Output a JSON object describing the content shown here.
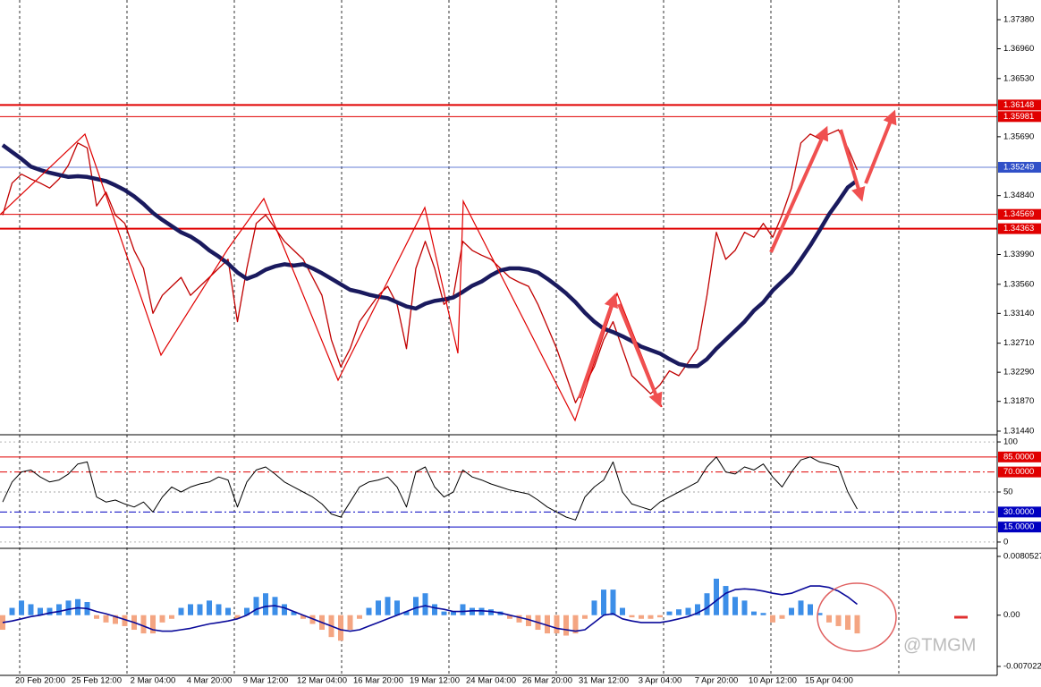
{
  "chart_data": [
    {
      "type": "line",
      "categories": [
        null,
        null,
        null,
        null,
        "20 Feb 20:00",
        null,
        null,
        null,
        null,
        null,
        "25 Feb 12:00",
        null,
        null,
        null,
        null,
        null,
        "2 Mar 04:00",
        null,
        null,
        null,
        null,
        null,
        "4 Mar 20:00",
        null,
        null,
        null,
        null,
        null,
        "9 Mar 12:00",
        null,
        null,
        null,
        null,
        null,
        "12 Mar 04:00",
        null,
        null,
        null,
        null,
        null,
        "16 Mar 20:00",
        null,
        null,
        null,
        null,
        null,
        "19 Mar 12:00",
        null,
        null,
        null,
        null,
        null,
        "24 Mar 04:00",
        null,
        null,
        null,
        null,
        null,
        "26 Mar 20:00",
        null,
        null,
        null,
        null,
        null,
        "31 Mar 12:00",
        null,
        null,
        null,
        null,
        null,
        "3 Apr 04:00",
        null,
        null,
        null,
        null,
        null,
        "7 Apr 20:00",
        null,
        null,
        null,
        null,
        null,
        "10 Apr 12:00",
        null,
        null,
        null,
        null,
        null,
        "15 Apr 04:00",
        null,
        null,
        null
      ],
      "series": [
        {
          "color": "#c00000",
          "values": [
            1.3456,
            1.3502,
            1.3515,
            1.3508,
            1.3502,
            1.3495,
            1.3508,
            1.3528,
            1.356,
            1.3553,
            1.3469,
            1.3489,
            1.3456,
            1.3444,
            1.3405,
            1.3379,
            1.3314,
            1.334,
            1.3353,
            1.3366,
            1.334,
            1.3353,
            1.3366,
            1.3379,
            1.3392,
            1.3302,
            1.3379,
            1.3444,
            1.3456,
            1.3437,
            1.3418,
            1.3405,
            1.3392,
            1.3366,
            1.334,
            1.3276,
            1.3237,
            1.3263,
            1.3302,
            1.3321,
            1.334,
            1.3353,
            1.3327,
            1.3263,
            1.3379,
            1.3418,
            1.3379,
            1.3327,
            1.334,
            1.3418,
            1.3405,
            1.3398,
            1.3392,
            1.3379,
            1.3366,
            1.3359,
            1.3353,
            1.3327,
            1.3295,
            1.3263,
            1.3224,
            1.3185,
            1.3211,
            1.3237,
            1.3276,
            1.3302,
            1.3263,
            1.3224,
            1.3211,
            1.3198,
            1.3211,
            1.3231,
            1.3224,
            1.3243,
            1.3263,
            1.334,
            1.3431,
            1.3392,
            1.3405,
            1.3431,
            1.3424,
            1.3444,
            1.3424,
            1.3456,
            1.3495,
            1.356,
            1.3573,
            1.3566,
            1.3573,
            1.3579,
            1.3553,
            1.3521
          ],
          "width": 1.3
        },
        {
          "color": "#1a1a5e",
          "values": [
            1.3557,
            1.3547,
            1.3537,
            1.3526,
            1.3521,
            1.3517,
            1.3514,
            1.3511,
            1.3512,
            1.3511,
            1.3508,
            1.3505,
            1.3499,
            1.3492,
            1.3483,
            1.3472,
            1.3459,
            1.3449,
            1.344,
            1.3431,
            1.3425,
            1.3416,
            1.3405,
            1.3396,
            1.3386,
            1.3373,
            1.3364,
            1.3369,
            1.3377,
            1.3382,
            1.3385,
            1.3383,
            1.3385,
            1.3379,
            1.3372,
            1.3364,
            1.3356,
            1.3348,
            1.3345,
            1.3341,
            1.3338,
            1.3336,
            1.333,
            1.3324,
            1.3321,
            1.3328,
            1.3332,
            1.3334,
            1.3337,
            1.3345,
            1.3354,
            1.336,
            1.3369,
            1.3376,
            1.3379,
            1.3379,
            1.3377,
            1.3373,
            1.3364,
            1.3354,
            1.3343,
            1.333,
            1.3315,
            1.3302,
            1.3292,
            1.3287,
            1.3281,
            1.3274,
            1.3266,
            1.3261,
            1.3256,
            1.3248,
            1.3241,
            1.3238,
            1.3238,
            1.3248,
            1.3263,
            1.3276,
            1.3289,
            1.3302,
            1.3318,
            1.333,
            1.3347,
            1.336,
            1.3373,
            1.3392,
            1.3412,
            1.3434,
            1.3457,
            1.3476,
            1.3496,
            1.3506
          ],
          "width": 4.5
        }
      ],
      "ylim": [
        1.31401,
        1.37664
      ],
      "yticks": [
        {
          "value": 1.3738,
          "label": "1.37380"
        },
        {
          "value": 1.3696,
          "label": "1.36960"
        },
        {
          "value": 1.3653,
          "label": "1.36530"
        },
        {
          "value": 1.3569,
          "label": "1.35690"
        },
        {
          "value": 1.3484,
          "label": "1.34840"
        },
        {
          "value": 1.3399,
          "label": "1.33990"
        },
        {
          "value": 1.3356,
          "label": "1.33560"
        },
        {
          "value": 1.3314,
          "label": "1.33140"
        },
        {
          "value": 1.3271,
          "label": "1.32710"
        },
        {
          "value": 1.3229,
          "label": "1.32290"
        },
        {
          "value": 1.3187,
          "label": "1.31870"
        },
        {
          "value": 1.3144,
          "label": "1.31440"
        }
      ],
      "levels": [
        {
          "value": 1.36148,
          "color": "#e00000",
          "width": 2
        },
        {
          "value": 1.35981,
          "color": "#e00000",
          "width": 1
        },
        {
          "value": 1.35249,
          "color": "#3050c8",
          "width": 0.8
        },
        {
          "value": 1.34569,
          "color": "#e00000",
          "width": 1
        },
        {
          "value": 1.34363,
          "color": "#e00000",
          "width": 2
        }
      ],
      "grid": false
    },
    {
      "type": "line",
      "series": [
        {
          "color": "#000000",
          "width": 1,
          "values": [
            40,
            60,
            70,
            72,
            65,
            60,
            62,
            68,
            78,
            80,
            45,
            40,
            42,
            38,
            35,
            40,
            30,
            45,
            55,
            50,
            55,
            58,
            60,
            65,
            62,
            35,
            60,
            72,
            75,
            68,
            60,
            55,
            50,
            45,
            38,
            28,
            25,
            40,
            55,
            60,
            62,
            65,
            55,
            35,
            70,
            75,
            55,
            45,
            50,
            72,
            65,
            62,
            58,
            55,
            52,
            50,
            48,
            42,
            35,
            30,
            25,
            22,
            45,
            55,
            62,
            80,
            50,
            38,
            35,
            32,
            40,
            45,
            50,
            55,
            60,
            75,
            85,
            70,
            68,
            75,
            72,
            78,
            65,
            55,
            70,
            82,
            85,
            80,
            78,
            75,
            50,
            33
          ]
        }
      ],
      "ylim": [
        -5.4,
        105.4
      ],
      "yticks": [
        0,
        50,
        100
      ],
      "levels": [
        {
          "value": 85,
          "label": "85.0000",
          "color": "#e00000",
          "width": 1,
          "dashed": false
        },
        {
          "value": 70,
          "label": "70.0000",
          "color": "#e00000",
          "width": 1,
          "dashed": true
        },
        {
          "value": 30,
          "label": "30.0000",
          "color": "#0000c0",
          "width": 1,
          "dashed": true
        },
        {
          "value": 15,
          "label": "15.0000",
          "color": "#0000c0",
          "width": 1,
          "dashed": false
        }
      ],
      "grid": true
    },
    {
      "type": "bar",
      "values": [
        -0.002,
        0.001,
        0.002,
        0.0015,
        0.001,
        0.001,
        0.0015,
        0.002,
        0.0022,
        0.0018,
        -0.0005,
        -0.001,
        -0.0012,
        -0.0015,
        -0.002,
        -0.0025,
        -0.0025,
        -0.001,
        -0.0005,
        0.001,
        0.0015,
        0.0015,
        0.002,
        0.0015,
        0.001,
        -0.0005,
        0.001,
        0.0025,
        0.003,
        0.0025,
        0.0015,
        0.0005,
        -0.0005,
        -0.0012,
        -0.002,
        -0.003,
        -0.0035,
        -0.002,
        -0.0005,
        0.001,
        0.002,
        0.0025,
        0.002,
        0.0005,
        0.0025,
        0.003,
        0.0015,
        0.0005,
        0.0005,
        0.0015,
        0.001,
        0.001,
        0.0008,
        0.0005,
        -0.0005,
        -0.001,
        -0.0015,
        -0.002,
        -0.0025,
        -0.0025,
        -0.0028,
        -0.0025,
        -0.0005,
        0.002,
        0.0035,
        0.0035,
        0.001,
        -0.0003,
        -0.0005,
        -0.0005,
        -0.0003,
        0.0005,
        0.0008,
        0.001,
        0.0015,
        0.003,
        0.005,
        0.004,
        0.0025,
        0.002,
        0.0005,
        0.0003,
        -0.001,
        -0.0005,
        0.001,
        0.002,
        0.0015,
        0.0003,
        -0.001,
        -0.0015,
        -0.002,
        -0.0025
      ],
      "colors": {
        "up": "#3c8ee8",
        "down": "#f4a582"
      },
      "series": [
        {
          "color": "#0a0a9a",
          "width": 1.6,
          "values": [
            -0.001,
            -0.0008,
            -0.0005,
            -0.0002,
            0,
            0.0003,
            0.0005,
            0.0008,
            0.001,
            0.0009,
            0.0005,
            0.0002,
            -0.0002,
            -0.0006,
            -0.001,
            -0.0015,
            -0.002,
            -0.0022,
            -0.0022,
            -0.002,
            -0.0018,
            -0.0015,
            -0.0012,
            -0.001,
            -0.0008,
            -0.0005,
            0,
            0.0008,
            0.0012,
            0.0013,
            0.001,
            0.0005,
            0,
            -0.0005,
            -0.001,
            -0.0015,
            -0.002,
            -0.0022,
            -0.002,
            -0.0015,
            -0.001,
            -0.0005,
            0,
            0.0005,
            0.001,
            0.0013,
            0.001,
            0.0008,
            0.0005,
            0.0005,
            0.0006,
            0.0006,
            0.0005,
            0.0003,
            0,
            -0.0003,
            -0.0006,
            -0.001,
            -0.0014,
            -0.0018,
            -0.002,
            -0.0022,
            -0.002,
            -0.001,
            0,
            0.0002,
            -0.0005,
            -0.0008,
            -0.001,
            -0.001,
            -0.001,
            -0.0008,
            -0.0005,
            -0.0002,
            0.0003,
            0.001,
            0.002,
            0.003,
            0.0035,
            0.0036,
            0.0035,
            0.0033,
            0.003,
            0.0028,
            0.003,
            0.0035,
            0.004,
            0.004,
            0.0038,
            0.0033,
            0.0025,
            0.0015
          ]
        }
      ],
      "ylim": [
        -0.00825,
        0.00891
      ],
      "yticks": [
        0.0080527,
        {
          "value": 0,
          "label": "0.00"
        },
        -0.0070227
      ],
      "annotation": "@TMGM"
    }
  ]
}
